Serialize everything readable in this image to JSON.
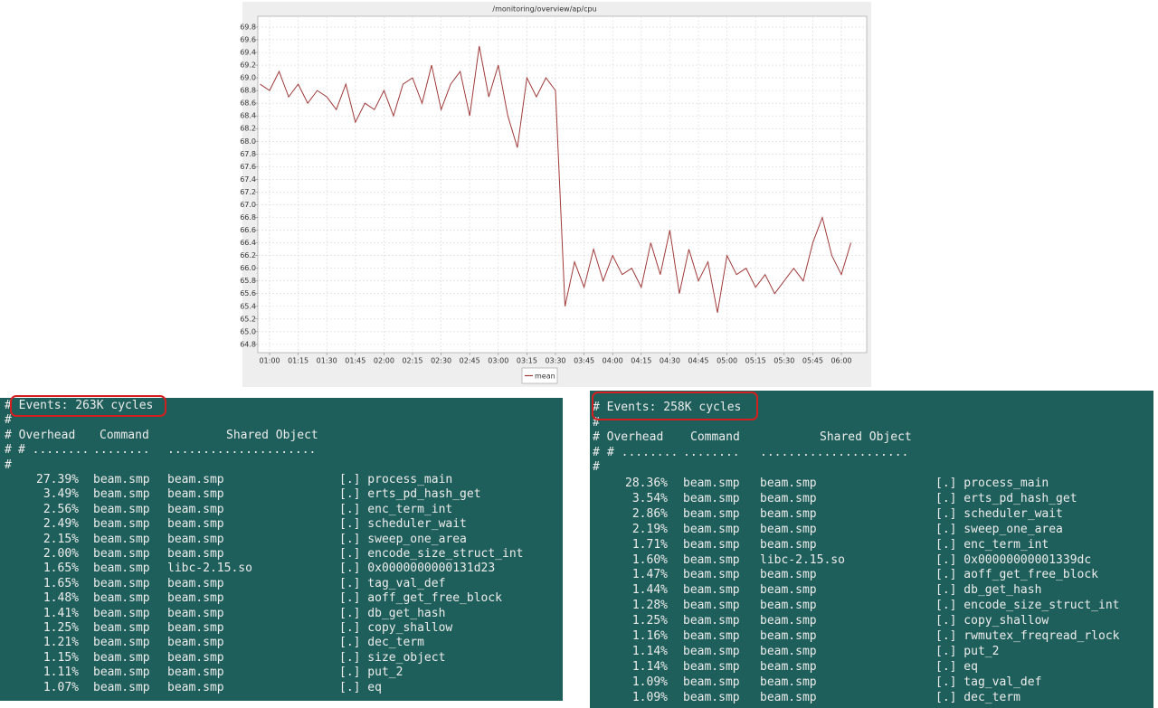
{
  "chart_data": {
    "type": "line",
    "title": "/monitoring/overview/ap/cpu",
    "categories": [
      null,
      "01:00",
      null,
      null,
      "01:15",
      null,
      null,
      "01:30",
      null,
      null,
      "01:45",
      null,
      null,
      "02:00",
      null,
      null,
      "02:15",
      null,
      null,
      "02:30",
      null,
      null,
      "02:45",
      null,
      null,
      "03:00",
      null,
      null,
      "03:15",
      null,
      null,
      "03:30",
      null,
      null,
      "03:45",
      null,
      null,
      "04:00",
      null,
      null,
      "04:15",
      null,
      null,
      "04:30",
      null,
      null,
      "04:45",
      null,
      null,
      "05:00",
      null,
      null,
      "05:15",
      null,
      null,
      "05:30",
      null,
      null,
      "05:45",
      null,
      null,
      "06:00",
      null
    ],
    "series": [
      {
        "name": "mean",
        "color": "#a03a3a",
        "values": [
          68.9,
          68.8,
          69.1,
          68.7,
          68.9,
          68.6,
          68.8,
          68.7,
          68.5,
          68.9,
          68.3,
          68.6,
          68.5,
          68.8,
          68.4,
          68.9,
          69.0,
          68.6,
          69.2,
          68.5,
          68.9,
          69.1,
          68.4,
          69.5,
          68.7,
          69.2,
          68.4,
          67.9,
          69.0,
          68.7,
          69.0,
          68.8,
          65.4,
          66.1,
          65.7,
          66.3,
          65.8,
          66.2,
          65.9,
          66.0,
          65.7,
          66.4,
          65.9,
          66.6,
          65.6,
          66.3,
          65.8,
          66.1,
          65.3,
          66.2,
          65.9,
          66.0,
          65.7,
          65.9,
          65.6,
          65.8,
          66.0,
          65.8,
          66.4,
          66.8,
          66.2,
          65.9,
          66.4
        ]
      }
    ],
    "ylim": [
      64.67,
      69.97
    ],
    "yticks": [
      64.8,
      {
        "value": 65,
        "label": "65.0"
      },
      65.2,
      65.4,
      65.6,
      65.8,
      {
        "value": 66,
        "label": "66.0"
      },
      66.2,
      66.4,
      66.6,
      66.8,
      {
        "value": 67,
        "label": "67.0"
      },
      67.2,
      67.4,
      67.6,
      67.8,
      {
        "value": 68,
        "label": "68.0"
      },
      68.2,
      68.4,
      68.6,
      68.8,
      {
        "value": 69,
        "label": "69.0"
      },
      69.2,
      69.4,
      69.6,
      69.8
    ],
    "grid": true,
    "legend": "bottom"
  },
  "terminals": [
    {
      "events": "# Events: 263K cycles",
      "blank": "#",
      "header": [
        "# Overhead",
        "Command",
        "Shared Object"
      ],
      "dots": [
        "# ........",
        "........",
        ".....................",
        "......................................."
      ],
      "rows": [
        [
          "27.39%",
          "beam.smp",
          "beam.smp",
          "[.] process_main"
        ],
        [
          "3.49%",
          "beam.smp",
          "beam.smp",
          "[.] erts_pd_hash_get"
        ],
        [
          "2.56%",
          "beam.smp",
          "beam.smp",
          "[.] enc_term_int"
        ],
        [
          "2.49%",
          "beam.smp",
          "beam.smp",
          "[.] scheduler_wait"
        ],
        [
          "2.15%",
          "beam.smp",
          "beam.smp",
          "[.] sweep_one_area"
        ],
        [
          "2.00%",
          "beam.smp",
          "beam.smp",
          "[.] encode_size_struct_int"
        ],
        [
          "1.65%",
          "beam.smp",
          "libc-2.15.so",
          "[.] 0x0000000000131d23"
        ],
        [
          "1.65%",
          "beam.smp",
          "beam.smp",
          "[.] tag_val_def"
        ],
        [
          "1.48%",
          "beam.smp",
          "beam.smp",
          "[.] aoff_get_free_block"
        ],
        [
          "1.41%",
          "beam.smp",
          "beam.smp",
          "[.] db_get_hash"
        ],
        [
          "1.25%",
          "beam.smp",
          "beam.smp",
          "[.] copy_shallow"
        ],
        [
          "1.21%",
          "beam.smp",
          "beam.smp",
          "[.] dec_term"
        ],
        [
          "1.15%",
          "beam.smp",
          "beam.smp",
          "[.] size_object"
        ],
        [
          "1.11%",
          "beam.smp",
          "beam.smp",
          "[.] put_2"
        ],
        [
          "1.07%",
          "beam.smp",
          "beam.smp",
          "[.] eq"
        ]
      ]
    },
    {
      "events": "# Events: 258K cycles",
      "blank": "#",
      "header": [
        "# Overhead",
        "Command",
        "Shared Object"
      ],
      "dots": [
        "# ........",
        "........",
        ".....................",
        "......................................."
      ],
      "rows": [
        [
          "28.36%",
          "beam.smp",
          "beam.smp",
          "[.] process_main"
        ],
        [
          "3.54%",
          "beam.smp",
          "beam.smp",
          "[.] erts_pd_hash_get"
        ],
        [
          "2.86%",
          "beam.smp",
          "beam.smp",
          "[.] scheduler_wait"
        ],
        [
          "2.19%",
          "beam.smp",
          "beam.smp",
          "[.] sweep_one_area"
        ],
        [
          "1.71%",
          "beam.smp",
          "beam.smp",
          "[.] enc_term_int"
        ],
        [
          "1.60%",
          "beam.smp",
          "libc-2.15.so",
          "[.] 0x00000000001339dc"
        ],
        [
          "1.47%",
          "beam.smp",
          "beam.smp",
          "[.] aoff_get_free_block"
        ],
        [
          "1.44%",
          "beam.smp",
          "beam.smp",
          "[.] db_get_hash"
        ],
        [
          "1.28%",
          "beam.smp",
          "beam.smp",
          "[.] encode_size_struct_int"
        ],
        [
          "1.25%",
          "beam.smp",
          "beam.smp",
          "[.] copy_shallow"
        ],
        [
          "1.16%",
          "beam.smp",
          "beam.smp",
          "[.] rwmutex_freqread_rlock"
        ],
        [
          "1.14%",
          "beam.smp",
          "beam.smp",
          "[.] put_2"
        ],
        [
          "1.14%",
          "beam.smp",
          "beam.smp",
          "[.] eq"
        ],
        [
          "1.09%",
          "beam.smp",
          "beam.smp",
          "[.] tag_val_def"
        ],
        [
          "1.09%",
          "beam.smp",
          "beam.smp",
          "[.] dec_term"
        ]
      ]
    }
  ]
}
